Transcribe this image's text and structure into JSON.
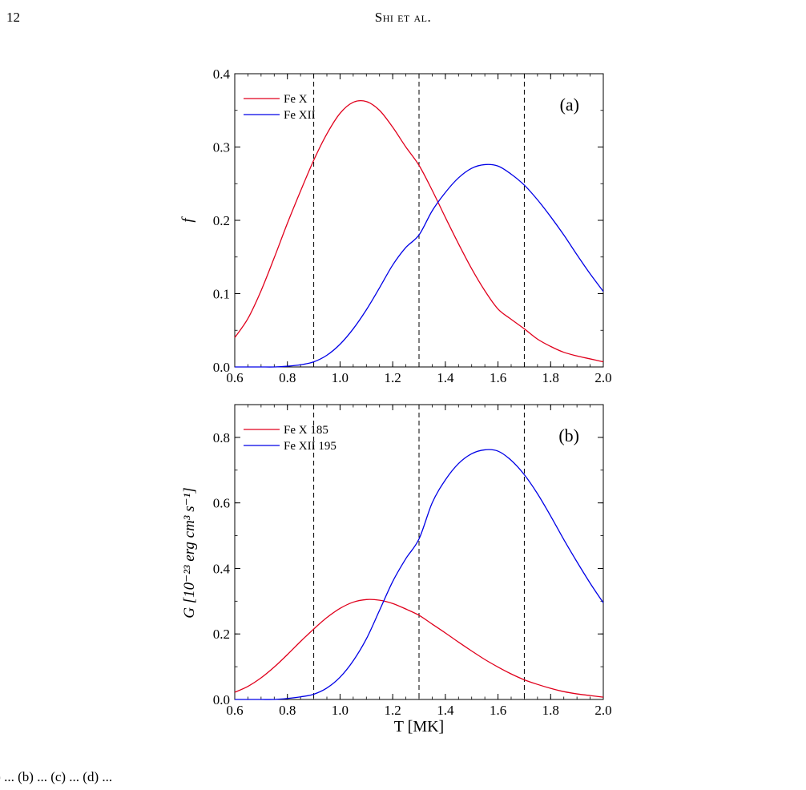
{
  "page": {
    "number": "12",
    "running_head": "Shi et al.",
    "caption_fragment": "(a) ... (b) ... (c) ... (d) ..."
  },
  "chart_data": [
    {
      "panel": "(a)",
      "type": "line",
      "xlabel": "",
      "ylabel": "f",
      "xlim": [
        0.6,
        2.0
      ],
      "ylim": [
        0.0,
        0.4
      ],
      "xticks": [
        0.6,
        0.8,
        1.0,
        1.2,
        1.4,
        1.6,
        1.8,
        2.0
      ],
      "xtick_labels": [
        "0.6",
        "0.8",
        "1.0",
        "1.2",
        "1.4",
        "1.6",
        "1.8",
        "2.0"
      ],
      "yticks": [
        0.0,
        0.1,
        0.2,
        0.3,
        0.4
      ],
      "ytick_labels": [
        "0.0",
        "0.1",
        "0.2",
        "0.3",
        "0.4"
      ],
      "legend_position": "top-left",
      "vlines": [
        0.9,
        1.3,
        1.7
      ],
      "grid": false,
      "series": [
        {
          "name": "Fe X",
          "color": "#e0001c",
          "x": [
            0.6,
            0.65,
            0.7,
            0.75,
            0.8,
            0.85,
            0.9,
            0.95,
            1.0,
            1.05,
            1.1,
            1.15,
            1.2,
            1.25,
            1.3,
            1.35,
            1.4,
            1.45,
            1.5,
            1.55,
            1.6,
            1.65,
            1.7,
            1.75,
            1.8,
            1.85,
            1.9,
            1.95,
            2.0
          ],
          "y": [
            0.04,
            0.066,
            0.104,
            0.149,
            0.196,
            0.24,
            0.282,
            0.318,
            0.346,
            0.361,
            0.362,
            0.35,
            0.327,
            0.3,
            0.275,
            0.241,
            0.204,
            0.168,
            0.134,
            0.104,
            0.079,
            0.065,
            0.052,
            0.038,
            0.028,
            0.02,
            0.015,
            0.011,
            0.007
          ]
        },
        {
          "name": "Fe XII",
          "color": "#0000e6",
          "x": [
            0.6,
            0.65,
            0.7,
            0.75,
            0.8,
            0.85,
            0.9,
            0.95,
            1.0,
            1.05,
            1.1,
            1.15,
            1.2,
            1.25,
            1.3,
            1.35,
            1.4,
            1.45,
            1.5,
            1.55,
            1.6,
            1.65,
            1.7,
            1.75,
            1.8,
            1.85,
            1.9,
            1.95,
            2.0
          ],
          "y": [
            0.0,
            0.0,
            0.0,
            0.0,
            0.001,
            0.003,
            0.007,
            0.016,
            0.031,
            0.052,
            0.078,
            0.108,
            0.139,
            0.163,
            0.18,
            0.213,
            0.238,
            0.258,
            0.271,
            0.276,
            0.274,
            0.263,
            0.248,
            0.228,
            0.205,
            0.18,
            0.153,
            0.127,
            0.103
          ]
        }
      ]
    },
    {
      "panel": "(b)",
      "type": "line",
      "xlabel": "T [MK]",
      "ylabel": "G [10⁻²³ erg cm³ s⁻¹]",
      "xlim": [
        0.6,
        2.0
      ],
      "ylim": [
        0.0,
        0.9
      ],
      "xticks": [
        0.6,
        0.8,
        1.0,
        1.2,
        1.4,
        1.6,
        1.8,
        2.0
      ],
      "xtick_labels": [
        "0.6",
        "0.8",
        "1.0",
        "1.2",
        "1.4",
        "1.6",
        "1.8",
        "2.0"
      ],
      "yticks": [
        0.0,
        0.2,
        0.4,
        0.6,
        0.8
      ],
      "ytick_labels": [
        "0.0",
        "0.2",
        "0.4",
        "0.6",
        "0.8"
      ],
      "legend_position": "top-left",
      "vlines": [
        0.9,
        1.3,
        1.7
      ],
      "grid": false,
      "series": [
        {
          "name": "Fe X 185",
          "color": "#e0001c",
          "x": [
            0.6,
            0.65,
            0.7,
            0.75,
            0.8,
            0.85,
            0.9,
            0.95,
            1.0,
            1.05,
            1.1,
            1.15,
            1.2,
            1.25,
            1.3,
            1.35,
            1.4,
            1.45,
            1.5,
            1.55,
            1.6,
            1.65,
            1.7,
            1.75,
            1.8,
            1.85,
            1.9,
            1.95,
            2.0
          ],
          "y": [
            0.022,
            0.04,
            0.066,
            0.099,
            0.137,
            0.177,
            0.215,
            0.25,
            0.278,
            0.297,
            0.305,
            0.303,
            0.293,
            0.276,
            0.257,
            0.23,
            0.203,
            0.175,
            0.148,
            0.122,
            0.099,
            0.078,
            0.06,
            0.046,
            0.034,
            0.024,
            0.017,
            0.012,
            0.007
          ]
        },
        {
          "name": "Fe XII 195",
          "color": "#0000e6",
          "x": [
            0.6,
            0.65,
            0.7,
            0.75,
            0.8,
            0.85,
            0.9,
            0.95,
            1.0,
            1.05,
            1.1,
            1.15,
            1.2,
            1.25,
            1.3,
            1.35,
            1.4,
            1.45,
            1.5,
            1.55,
            1.6,
            1.65,
            1.7,
            1.75,
            1.8,
            1.85,
            1.9,
            1.95,
            2.0
          ],
          "y": [
            0.0,
            0.0,
            0.0,
            0.0,
            0.003,
            0.008,
            0.016,
            0.035,
            0.068,
            0.118,
            0.185,
            0.272,
            0.36,
            0.43,
            0.49,
            0.6,
            0.67,
            0.72,
            0.75,
            0.762,
            0.758,
            0.73,
            0.686,
            0.628,
            0.56,
            0.488,
            0.42,
            0.355,
            0.295
          ]
        }
      ]
    }
  ]
}
